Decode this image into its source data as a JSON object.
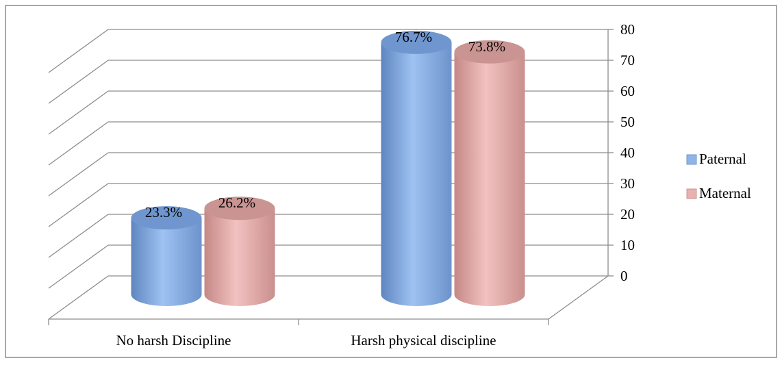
{
  "chart_data": {
    "type": "bar",
    "categories": [
      "No harsh Discipline",
      "Harsh physical discipline"
    ],
    "series": [
      {
        "name": "Paternal",
        "values": [
          23.3,
          76.7
        ],
        "labels": [
          "23.3%",
          "76.7%"
        ],
        "color": "#8fb4e8"
      },
      {
        "name": "Maternal",
        "values": [
          26.2,
          73.8
        ],
        "labels": [
          "26.2%",
          "73.8%"
        ],
        "color": "#e8b0ae"
      }
    ],
    "ylim": [
      0,
      80
    ],
    "yticks": [
      "0",
      "10",
      "20",
      "30",
      "40",
      "50",
      "60",
      "70",
      "80"
    ],
    "grid": true,
    "legend": "right",
    "style": "3d-cylinder"
  }
}
